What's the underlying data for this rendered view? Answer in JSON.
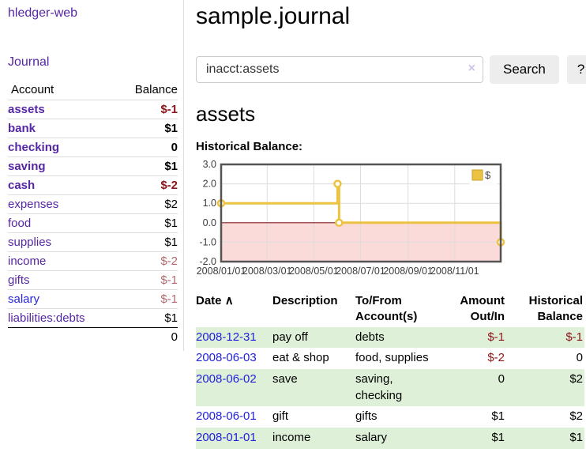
{
  "sidebar": {
    "app_title": "hledger-web",
    "nav_journal_label": "Journal",
    "accounts_table": {
      "headers": [
        "Account",
        "Balance"
      ],
      "rows": [
        {
          "account": "assets",
          "balance": "$-1",
          "indent": 1,
          "bold": true,
          "balance_style": "neg"
        },
        {
          "account": "bank",
          "balance": "$1",
          "indent": 2,
          "bold": true,
          "balance_style": "pos"
        },
        {
          "account": "checking",
          "balance": "0",
          "indent": 3,
          "bold": true,
          "balance_style": "pos"
        },
        {
          "account": "saving",
          "balance": "$1",
          "indent": 3,
          "bold": true,
          "balance_style": "pos"
        },
        {
          "account": "cash",
          "balance": "$-2",
          "indent": 2,
          "bold": true,
          "balance_style": "neg"
        },
        {
          "account": "expenses",
          "balance": "$2",
          "indent": 1,
          "bold": false,
          "balance_style": "pos"
        },
        {
          "account": "food",
          "balance": "$1",
          "indent": 2,
          "bold": false,
          "balance_style": "pos"
        },
        {
          "account": "supplies",
          "balance": "$1",
          "indent": 2,
          "bold": false,
          "balance_style": "pos"
        },
        {
          "account": "income",
          "balance": "$-2",
          "indent": 1,
          "bold": false,
          "balance_style": "negsoft"
        },
        {
          "account": "gifts",
          "balance": "$-1",
          "indent": 2,
          "bold": false,
          "balance_style": "negsoft"
        },
        {
          "account": "salary",
          "balance": "$-1",
          "indent": 2,
          "bold": false,
          "balance_style": "negsoft",
          "link_style": "blue"
        },
        {
          "account": "liabilities:debts",
          "balance": "$1",
          "indent": 1,
          "bold": false,
          "balance_style": "pos"
        }
      ],
      "total": "0"
    }
  },
  "header": {
    "title": "sample.journal"
  },
  "search": {
    "value": "inacct:assets",
    "clear_icon": "×",
    "button_label": "Search",
    "help_label": "?"
  },
  "account_page": {
    "title": "assets",
    "chart_label": "Historical Balance:"
  },
  "chart_data": {
    "type": "line",
    "title": "Historical Balance",
    "step": true,
    "series": [
      {
        "name": "$",
        "color": "#EDC240",
        "points": [
          [
            "2008-01-01",
            1
          ],
          [
            "2008-06-01",
            2
          ],
          [
            "2008-06-03",
            0
          ],
          [
            "2008-12-31",
            -1
          ]
        ]
      }
    ],
    "x_range": [
      "2008-01-01",
      "2008-12-31"
    ],
    "ylim": [
      -2,
      3
    ],
    "yticks": [
      3.0,
      2.0,
      1.0,
      0.0,
      -1.0,
      -2.0
    ],
    "xticks": [
      {
        "date": "2008-01-01",
        "label": "2008/01/01"
      },
      {
        "date": "2008-03-01",
        "label": "2008/03/01"
      },
      {
        "date": "2008-05-01",
        "label": "2008/05/01"
      },
      {
        "date": "2008-07-01",
        "label": "2008/07/01"
      },
      {
        "date": "2008-09-01",
        "label": "2008/09/01"
      },
      {
        "date": "2008-11-01",
        "label": "2008/11/01"
      }
    ],
    "grid": true,
    "legend_position": "top-right",
    "colors": {
      "line": "#EDC240",
      "marker_fill": "#ffffff",
      "negative_region": "#fbdada",
      "zero_line": "#8b2121",
      "border": "#545454",
      "gridline": "#dcdcdc",
      "tick_text": "#3c3c3c"
    }
  },
  "register_table": {
    "headers": {
      "date": "Date",
      "sort_indicator": "∧",
      "description": "Description",
      "accounts": "To/From Account(s)",
      "amount": "Amount Out/In",
      "balance": "Historical Balance"
    },
    "rows": [
      {
        "date": "2008-12-31",
        "description": "pay off",
        "accounts": "debts",
        "amount": "$-1",
        "balance": "$-1",
        "shaded": true
      },
      {
        "date": "2008-06-03",
        "description": "eat & shop",
        "accounts": "food, supplies",
        "amount": "$-2",
        "balance": "0",
        "shaded": false
      },
      {
        "date": "2008-06-02",
        "description": "save",
        "accounts": "saving, checking",
        "amount": "0",
        "balance": "$2",
        "shaded": true
      },
      {
        "date": "2008-06-01",
        "description": "gift",
        "accounts": "gifts",
        "amount": "$1",
        "balance": "$2",
        "shaded": false
      },
      {
        "date": "2008-01-01",
        "description": "income",
        "accounts": "salary",
        "amount": "$1",
        "balance": "$1",
        "shaded": true
      }
    ]
  },
  "colors": {
    "link_purple": "#5526a5",
    "link_blue": "#2222dd",
    "negative_strong": "#8e1519",
    "negative_soft": "#b36a6e",
    "row_green": "#dff0d8",
    "divider": "#dddddd"
  }
}
